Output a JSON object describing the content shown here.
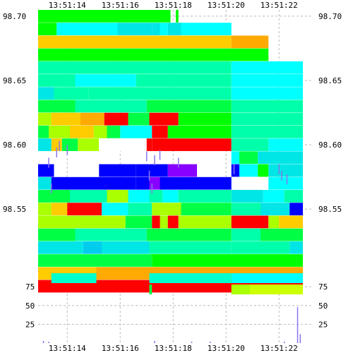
{
  "chart_data": {
    "type": "heatmap",
    "time_ticks": [
      "13:51:14",
      "13:51:16",
      "13:51:18",
      "13:51:20",
      "13:51:22"
    ],
    "x_range": [
      "13:51:12.9",
      "13:51:23.3"
    ],
    "price_axis": {
      "ticks": [
        98.7,
        98.65,
        98.6,
        98.55
      ],
      "tick_labels": [
        "98.70",
        "98.65",
        "98.60",
        "98.55"
      ],
      "range": [
        98.505,
        98.7
      ]
    },
    "volume_axis": {
      "ticks": [
        75,
        50,
        25
      ],
      "tick_labels": [
        "75",
        "50",
        "25"
      ],
      "range": [
        0,
        93
      ]
    },
    "grid": true,
    "colors": {
      "bg": "#ffffff",
      "grid": "#bbbbbb",
      "trade": "#8877ee",
      "volume": "#8877ee",
      "depth_1": "#00e5e5",
      "depth_2": "#00ffff",
      "depth_3": "#00ffaa",
      "depth_4": "#00ff44",
      "depth_5": "#00ff00",
      "depth_6": "#aaff00",
      "depth_7": "#ffcc00",
      "depth_8": "#ffaa00",
      "depth_9": "#ff0000",
      "depth_10": "#0000ff"
    },
    "price_bands": [
      {
        "price": 98.7,
        "segments": [
          [
            12.9,
            17.9,
            "#00ff00"
          ],
          [
            18.1,
            18.2,
            "#00ff00"
          ]
        ]
      },
      {
        "price": 98.69,
        "segments": [
          [
            12.9,
            13.6,
            "#00ff00"
          ],
          [
            13.6,
            15.9,
            "#00ffff"
          ],
          [
            15.9,
            17.2,
            "#00e5e5"
          ],
          [
            17.2,
            17.5,
            "#00e5e5"
          ],
          [
            17.5,
            17.8,
            "#00ffff"
          ],
          [
            17.8,
            18.3,
            "#00e5e5"
          ],
          [
            18.3,
            20.2,
            "#00ffff"
          ]
        ]
      },
      {
        "price": 98.68,
        "segments": [
          [
            12.9,
            20.2,
            "#ffcc00"
          ],
          [
            20.2,
            21.6,
            "#ffaa00"
          ]
        ]
      },
      {
        "price": 98.67,
        "segments": [
          [
            12.9,
            21.6,
            "#00ff00"
          ]
        ]
      },
      {
        "price": 98.66,
        "segments": [
          [
            12.9,
            20.2,
            "#00ffaa"
          ],
          [
            20.2,
            22.9,
            "#00ffff"
          ]
        ]
      },
      {
        "price": 98.65,
        "segments": [
          [
            12.9,
            14.3,
            "#00ffaa"
          ],
          [
            14.3,
            16.6,
            "#00ffff"
          ],
          [
            16.6,
            20.2,
            "#00ffaa"
          ],
          [
            20.2,
            22.9,
            "#00ffff"
          ]
        ]
      },
      {
        "price": 98.64,
        "segments": [
          [
            12.9,
            13.5,
            "#00e5e5"
          ],
          [
            13.5,
            14.8,
            "#00ffaa"
          ],
          [
            14.8,
            17.5,
            "#00ffaa"
          ],
          [
            17.5,
            20.2,
            "#00ffaa"
          ],
          [
            20.2,
            22.9,
            "#00ffff"
          ]
        ]
      },
      {
        "price": 98.63,
        "segments": [
          [
            12.9,
            14.3,
            "#00ff44"
          ],
          [
            14.3,
            17.0,
            "#00ffaa"
          ],
          [
            17.0,
            20.2,
            "#00ff44"
          ],
          [
            20.2,
            22.9,
            "#00ffaa"
          ]
        ]
      },
      {
        "price": 98.62,
        "segments": [
          [
            12.9,
            13.4,
            "#aaff00"
          ],
          [
            13.4,
            14.5,
            "#ffcc00"
          ],
          [
            14.5,
            15.4,
            "#ffaa00"
          ],
          [
            15.4,
            16.3,
            "#ff0000"
          ],
          [
            16.3,
            17.1,
            "#00ff44"
          ],
          [
            17.1,
            18.2,
            "#ff0000"
          ],
          [
            18.2,
            20.2,
            "#00ff00"
          ],
          [
            20.2,
            22.9,
            "#00ffaa"
          ]
        ]
      },
      {
        "price": 98.61,
        "segments": [
          [
            12.9,
            13.3,
            "#00ff44"
          ],
          [
            13.3,
            14.1,
            "#aaff00"
          ],
          [
            14.1,
            15.0,
            "#ffcc00"
          ],
          [
            15.0,
            15.5,
            "#aaff00"
          ],
          [
            15.5,
            16.0,
            "#00ff44"
          ],
          [
            16.0,
            17.2,
            "#00ffff"
          ],
          [
            17.2,
            17.8,
            "#ff0000"
          ],
          [
            17.8,
            20.2,
            "#00ff00"
          ],
          [
            20.2,
            22.9,
            "#00ffaa"
          ]
        ]
      },
      {
        "price": 98.6,
        "segments": [
          [
            12.9,
            13.4,
            "#00e5e5"
          ],
          [
            13.4,
            13.8,
            "#ffcc00"
          ],
          [
            13.8,
            14.4,
            "#00ff44"
          ],
          [
            14.4,
            15.2,
            "#aaff00"
          ],
          [
            15.2,
            17.0,
            "#ffffff"
          ],
          [
            17.0,
            17.2,
            "#ff0000"
          ],
          [
            17.2,
            20.2,
            "#ff0000"
          ],
          [
            20.2,
            21.6,
            "#00ffaa"
          ],
          [
            21.6,
            22.9,
            "#00ffff"
          ]
        ]
      },
      {
        "price": 98.59,
        "segments": [
          [
            20.2,
            20.5,
            "#00ffff"
          ],
          [
            20.5,
            21.2,
            "#00ff44"
          ],
          [
            21.2,
            22.9,
            "#00e5e5"
          ]
        ]
      },
      {
        "price": 98.58,
        "segments": [
          [
            12.9,
            13.5,
            "#0000ff"
          ],
          [
            15.2,
            16.6,
            "#0000ff"
          ],
          [
            16.6,
            17.8,
            "#0000ff"
          ],
          [
            17.8,
            18.9,
            "#8800ff"
          ],
          [
            20.2,
            20.5,
            "#0000ff"
          ],
          [
            20.5,
            21.2,
            "#00ffff"
          ],
          [
            21.2,
            21.6,
            "#00ff00"
          ],
          [
            21.6,
            22.9,
            "#00e5e5"
          ]
        ]
      },
      {
        "price": 98.57,
        "segments": [
          [
            12.9,
            13.4,
            "#00e5e5"
          ],
          [
            13.4,
            15.3,
            "#0000ff"
          ],
          [
            15.3,
            16.6,
            "#0000ff"
          ],
          [
            16.6,
            17.1,
            "#0000ff"
          ],
          [
            17.1,
            17.5,
            "#8800ff"
          ],
          [
            17.5,
            18.1,
            "#0000ff"
          ],
          [
            18.1,
            20.2,
            "#0000ff"
          ],
          [
            21.6,
            22.9,
            "#00ffff"
          ]
        ]
      },
      {
        "price": 98.56,
        "segments": [
          [
            12.9,
            14.1,
            "#00ff44"
          ],
          [
            14.1,
            15.5,
            "#00ffaa"
          ],
          [
            15.5,
            16.3,
            "#aaff00"
          ],
          [
            16.3,
            17.1,
            "#00ffff"
          ],
          [
            17.1,
            17.6,
            "#00ffaa"
          ],
          [
            17.6,
            18.2,
            "#00ffff"
          ],
          [
            18.2,
            20.2,
            "#00ffaa"
          ],
          [
            20.2,
            21.4,
            "#00e5e5"
          ],
          [
            21.4,
            22.2,
            "#00ffff"
          ],
          [
            22.2,
            22.9,
            "#00ffaa"
          ]
        ]
      },
      {
        "price": 98.55,
        "segments": [
          [
            12.9,
            13.4,
            "#aaff00"
          ],
          [
            13.4,
            14.0,
            "#ffcc00"
          ],
          [
            14.0,
            15.3,
            "#ff0000"
          ],
          [
            15.3,
            16.3,
            "#00ffff"
          ],
          [
            16.3,
            17.2,
            "#00ffaa"
          ],
          [
            17.2,
            18.3,
            "#aaff00"
          ],
          [
            18.3,
            20.2,
            "#00ff44"
          ],
          [
            20.2,
            21.3,
            "#00ffaa"
          ],
          [
            21.3,
            22.4,
            "#00e5e5"
          ],
          [
            22.4,
            22.9,
            "#0000ff"
          ]
        ]
      },
      {
        "price": 98.54,
        "segments": [
          [
            12.9,
            16.2,
            "#aaff00"
          ],
          [
            16.2,
            17.2,
            "#00ff44"
          ],
          [
            17.2,
            17.5,
            "#ff0000"
          ],
          [
            17.5,
            17.8,
            "#aaff00"
          ],
          [
            17.8,
            18.2,
            "#ff0000"
          ],
          [
            18.2,
            20.2,
            "#aaff00"
          ],
          [
            20.2,
            21.6,
            "#ff0000"
          ],
          [
            21.6,
            22.0,
            "#aaff00"
          ],
          [
            22.0,
            22.9,
            "#ffcc00"
          ]
        ]
      },
      {
        "price": 98.53,
        "segments": [
          [
            12.9,
            14.3,
            "#00ff44"
          ],
          [
            14.3,
            17.0,
            "#00ffaa"
          ],
          [
            17.0,
            20.2,
            "#00ff44"
          ],
          [
            20.2,
            21.3,
            "#00ffaa"
          ],
          [
            21.3,
            22.9,
            "#00ff44"
          ]
        ]
      },
      {
        "price": 98.52,
        "segments": [
          [
            12.9,
            14.6,
            "#00e5e5"
          ],
          [
            14.6,
            15.3,
            "#00ccee"
          ],
          [
            15.3,
            17.1,
            "#00e5e5"
          ],
          [
            17.1,
            20.2,
            "#00ffaa"
          ],
          [
            20.2,
            22.4,
            "#00ffaa"
          ],
          [
            22.4,
            22.9,
            "#00e5e5"
          ]
        ]
      },
      {
        "price": 98.51,
        "segments": [
          [
            12.9,
            17.2,
            "#00ff44"
          ],
          [
            17.2,
            22.9,
            "#00ff00"
          ]
        ]
      },
      {
        "price": 98.5,
        "segments": [
          [
            12.9,
            15.1,
            "#ffcc00"
          ],
          [
            15.1,
            22.9,
            "#ffaa00"
          ]
        ]
      },
      {
        "price": 98.49,
        "segments": [
          [
            12.9,
            22.9,
            "#ff0000"
          ]
        ]
      }
    ],
    "volume_strip": [
      {
        "level": 75,
        "segments": [
          [
            13.4,
            15.1,
            "#00ffcc"
          ],
          [
            17.1,
            20.2,
            "#00ffcc"
          ],
          [
            20.2,
            22.9,
            "#00ffff"
          ]
        ]
      },
      {
        "level": 60,
        "segments": [
          [
            17.1,
            17.2,
            "#00ff44"
          ],
          [
            20.2,
            20.9,
            "#aaff00"
          ],
          [
            20.9,
            22.9,
            "#ccff00"
          ]
        ]
      }
    ],
    "volume_bars": [
      {
        "t": 13.1,
        "v": 3
      },
      {
        "t": 13.3,
        "v": 2
      },
      {
        "t": 17.3,
        "v": 3
      },
      {
        "t": 18.7,
        "v": 2
      },
      {
        "t": 19.4,
        "v": 2
      },
      {
        "t": 22.2,
        "v": 2
      },
      {
        "t": 22.7,
        "v": 48
      },
      {
        "t": 22.8,
        "v": 12
      }
    ],
    "trades": [
      {
        "t": 13.3,
        "p": 98.585
      },
      {
        "t": 13.4,
        "p": 98.565
      },
      {
        "t": 13.6,
        "p": 98.593
      },
      {
        "t": 13.7,
        "p": 98.598
      },
      {
        "t": 14.0,
        "p": 98.595
      },
      {
        "t": 17.0,
        "p": 98.59
      },
      {
        "t": 17.1,
        "p": 98.575
      },
      {
        "t": 17.2,
        "p": 98.565
      },
      {
        "t": 17.3,
        "p": 98.587
      },
      {
        "t": 17.5,
        "p": 98.591
      },
      {
        "t": 18.2,
        "p": 98.585
      },
      {
        "t": 20.3,
        "p": 98.58
      },
      {
        "t": 22.0,
        "p": 98.58
      },
      {
        "t": 22.1,
        "p": 98.575
      },
      {
        "t": 22.3,
        "p": 98.572
      }
    ]
  }
}
